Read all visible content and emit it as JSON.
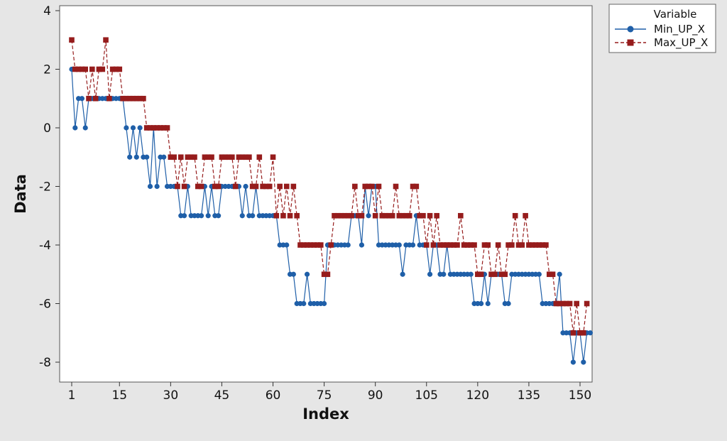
{
  "chart_data": {
    "type": "line",
    "xlabel": "Index",
    "ylabel": "Data",
    "xlim": [
      1,
      150
    ],
    "ylim": [
      -9,
      4
    ],
    "x_ticks": [
      1,
      15,
      30,
      45,
      60,
      75,
      90,
      105,
      120,
      135,
      150
    ],
    "y_ticks": [
      4,
      2,
      0,
      -2,
      -4,
      -6,
      -8
    ],
    "grid": false,
    "legend": {
      "title": "Variable",
      "placement": "outside-right"
    },
    "series": [
      {
        "name": "Min_UP_X",
        "color": "#1f5fa8",
        "marker": "circle",
        "line_style": "solid",
        "values": [
          2,
          0,
          1,
          1,
          0,
          1,
          1,
          1,
          1,
          1,
          1,
          1,
          1,
          1,
          1,
          1,
          0,
          -1,
          0,
          -1,
          0,
          -1,
          -1,
          -2,
          0,
          -2,
          -1,
          -1,
          -2,
          -2,
          -2,
          -2,
          -3,
          -3,
          -2,
          -3,
          -3,
          -3,
          -3,
          -2,
          -3,
          -2,
          -3,
          -3,
          -2,
          -2,
          -2,
          -2,
          -2,
          -2,
          -3,
          -2,
          -3,
          -3,
          -2,
          -3,
          -3,
          -3,
          -3,
          -3,
          -3,
          -4,
          -4,
          -4,
          -5,
          -5,
          -6,
          -6,
          -6,
          -5,
          -6,
          -6,
          -6,
          -6,
          -6,
          -4,
          -4,
          -4,
          -4,
          -4,
          -4,
          -4,
          -3,
          -3,
          -3,
          -4,
          -2,
          -3,
          -2,
          -2,
          -4,
          -4,
          -4,
          -4,
          -4,
          -4,
          -4,
          -5,
          -4,
          -4,
          -4,
          -3,
          -4,
          -4,
          -4,
          -5,
          -4,
          -4,
          -5,
          -5,
          -4,
          -5,
          -5,
          -5,
          -5,
          -5,
          -5,
          -5,
          -6,
          -6,
          -6,
          -5,
          -6,
          -5,
          -5,
          -5,
          -5,
          -6,
          -6,
          -5,
          -5,
          -5,
          -5,
          -5,
          -5,
          -5,
          -5,
          -5,
          -6,
          -6,
          -6,
          -6,
          -6,
          -5,
          -7,
          -7,
          -7,
          -8,
          -7,
          -7,
          -8,
          -7,
          -7
        ]
      },
      {
        "name": "Max_UP_X",
        "color": "#961c1c",
        "marker": "square",
        "line_style": "dashed",
        "values": [
          3,
          2,
          2,
          2,
          2,
          1,
          2,
          1,
          2,
          2,
          3,
          1,
          2,
          2,
          2,
          1,
          1,
          1,
          1,
          1,
          1,
          1,
          0,
          0,
          0,
          0,
          0,
          0,
          0,
          -1,
          -1,
          -2,
          -1,
          -2,
          -1,
          -1,
          -1,
          -2,
          -2,
          -1,
          -1,
          -1,
          -2,
          -2,
          -1,
          -1,
          -1,
          -1,
          -2,
          -1,
          -1,
          -1,
          -1,
          -2,
          -2,
          -1,
          -2,
          -2,
          -2,
          -1,
          -3,
          -2,
          -3,
          -2,
          -3,
          -2,
          -3,
          -4,
          -4,
          -4,
          -4,
          -4,
          -4,
          -4,
          -5,
          -5,
          -4,
          -3,
          -3,
          -3,
          -3,
          -3,
          -3,
          -2,
          -3,
          -3,
          -2,
          -2,
          -2,
          -3,
          -2,
          -3,
          -3,
          -3,
          -3,
          -2,
          -3,
          -3,
          -3,
          -3,
          -2,
          -2,
          -3,
          -3,
          -4,
          -3,
          -4,
          -3,
          -4,
          -4,
          -4,
          -4,
          -4,
          -4,
          -3,
          -4,
          -4,
          -4,
          -4,
          -5,
          -5,
          -4,
          -4,
          -5,
          -5,
          -4,
          -5,
          -5,
          -4,
          -4,
          -3,
          -4,
          -4,
          -3,
          -4,
          -4,
          -4,
          -4,
          -4,
          -4,
          -5,
          -5,
          -6,
          -6,
          -6,
          -6,
          -6,
          -7,
          -6,
          -7,
          -7,
          -6
        ]
      }
    ]
  }
}
